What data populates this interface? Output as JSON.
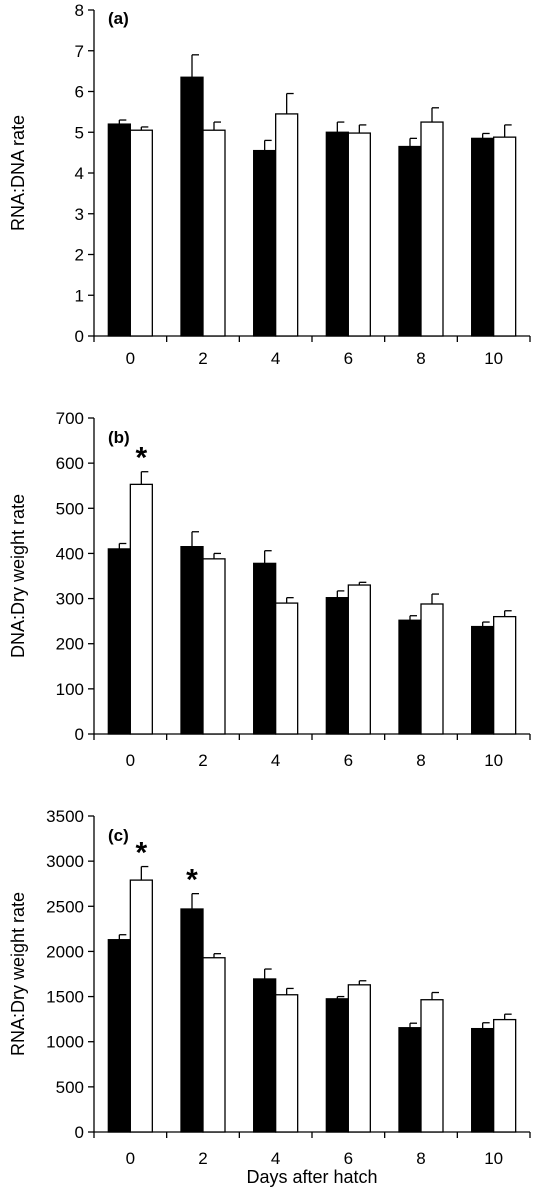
{
  "chart_data": [
    {
      "type": "bar",
      "panel_label": "(a)",
      "ylabel": "RNA:DNA rate",
      "xlabel": "",
      "categories": [
        "0",
        "2",
        "4",
        "6",
        "8",
        "10"
      ],
      "ylim": [
        0,
        8
      ],
      "yticks": [
        "0",
        "1",
        "2",
        "3",
        "4",
        "5",
        "6",
        "7",
        "8"
      ],
      "series": [
        {
          "color": "#000000",
          "values": [
            5.2,
            6.35,
            4.55,
            5.0,
            4.65,
            4.85
          ],
          "errors": [
            0.1,
            0.55,
            0.25,
            0.25,
            0.2,
            0.12
          ]
        },
        {
          "color": "#ffffff",
          "values": [
            5.05,
            5.05,
            5.45,
            4.98,
            5.25,
            4.88
          ],
          "errors": [
            0.08,
            0.2,
            0.5,
            0.2,
            0.35,
            0.3
          ]
        }
      ],
      "annotations": [],
      "grid": false
    },
    {
      "type": "bar",
      "panel_label": "(b)",
      "ylabel": "DNA:Dry weight rate",
      "xlabel": "",
      "categories": [
        "0",
        "2",
        "4",
        "6",
        "8",
        "10"
      ],
      "ylim": [
        0,
        700
      ],
      "yticks": [
        "0",
        "100",
        "200",
        "300",
        "400",
        "500",
        "600",
        "700"
      ],
      "series": [
        {
          "color": "#000000",
          "values": [
            410,
            415,
            378,
            302,
            252,
            238
          ],
          "errors": [
            12,
            33,
            28,
            15,
            10,
            10
          ]
        },
        {
          "color": "#ffffff",
          "values": [
            553,
            388,
            290,
            330,
            288,
            260
          ],
          "errors": [
            28,
            12,
            12,
            6,
            22,
            13
          ]
        }
      ],
      "annotations": [
        {
          "category": "0",
          "series": 1,
          "text": "*"
        }
      ],
      "grid": false
    },
    {
      "type": "bar",
      "panel_label": "(c)",
      "ylabel": "RNA:Dry weight rate",
      "xlabel": "Days after hatch",
      "categories": [
        "0",
        "2",
        "4",
        "6",
        "8",
        "10"
      ],
      "ylim": [
        0,
        3500
      ],
      "yticks": [
        "0",
        "500",
        "1000",
        "1500",
        "2000",
        "2500",
        "3000",
        "3500"
      ],
      "series": [
        {
          "color": "#000000",
          "values": [
            2130,
            2470,
            1695,
            1475,
            1155,
            1145
          ],
          "errors": [
            55,
            170,
            110,
            25,
            50,
            65
          ]
        },
        {
          "color": "#ffffff",
          "values": [
            2790,
            1930,
            1520,
            1630,
            1465,
            1245
          ],
          "errors": [
            150,
            45,
            70,
            45,
            80,
            60
          ]
        }
      ],
      "annotations": [
        {
          "category": "0",
          "series": 1,
          "text": "*"
        },
        {
          "category": "2",
          "series": 0,
          "text": "*"
        }
      ],
      "grid": false
    }
  ]
}
